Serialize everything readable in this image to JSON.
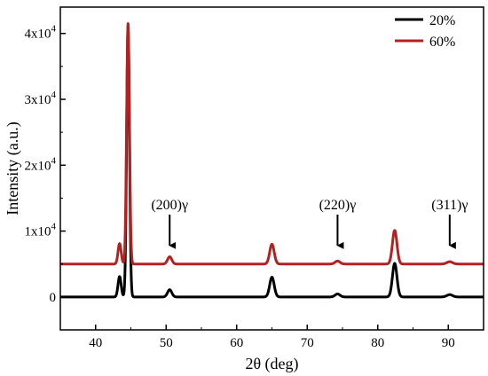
{
  "chart_data": {
    "type": "line",
    "xlabel": "2θ (deg)",
    "ylabel": "Intensity (a.u.)",
    "xlim": [
      35,
      95
    ],
    "ylim": [
      -5000,
      44000
    ],
    "x_ticks": [
      40,
      50,
      60,
      70,
      80,
      90
    ],
    "x_tick_labels": [
      "40",
      "50",
      "60",
      "70",
      "80",
      "90"
    ],
    "y_ticks": [
      0,
      10000,
      20000,
      30000,
      40000
    ],
    "y_tick_labels": [
      {
        "base": "0",
        "exp": ""
      },
      {
        "base": "1x10",
        "exp": "4"
      },
      {
        "base": "2x10",
        "exp": "4"
      },
      {
        "base": "3x10",
        "exp": "4"
      },
      {
        "base": "4x10",
        "exp": "4"
      }
    ],
    "grid": false,
    "legend_position": "top-right",
    "series": [
      {
        "name": "20%",
        "color": "#000000",
        "baseline": 0,
        "peaks": [
          {
            "x": 43.4,
            "height": 3100,
            "width": 0.22
          },
          {
            "x": 44.6,
            "height": 41000,
            "width": 0.2
          },
          {
            "x": 50.5,
            "height": 1100,
            "width": 0.3
          },
          {
            "x": 65.0,
            "height": 3000,
            "width": 0.32
          },
          {
            "x": 74.3,
            "height": 450,
            "width": 0.35
          },
          {
            "x": 82.4,
            "height": 5100,
            "width": 0.32
          },
          {
            "x": 90.2,
            "height": 350,
            "width": 0.4
          }
        ]
      },
      {
        "name": "60%",
        "color": "#b22222",
        "baseline": 5000,
        "peaks": [
          {
            "x": 43.4,
            "height": 3100,
            "width": 0.22
          },
          {
            "x": 44.6,
            "height": 36500,
            "width": 0.2
          },
          {
            "x": 50.5,
            "height": 1100,
            "width": 0.3
          },
          {
            "x": 65.0,
            "height": 3000,
            "width": 0.32
          },
          {
            "x": 74.3,
            "height": 450,
            "width": 0.35
          },
          {
            "x": 82.4,
            "height": 5100,
            "width": 0.32
          },
          {
            "x": 90.2,
            "height": 350,
            "width": 0.4
          }
        ]
      }
    ],
    "annotations": [
      {
        "text": "(200)γ",
        "x": 50.5,
        "arrow_top": 12500,
        "arrow_tip": 7000
      },
      {
        "text": "(220)γ",
        "x": 74.3,
        "arrow_top": 12500,
        "arrow_tip": 7000
      },
      {
        "text": "(311)γ",
        "x": 90.2,
        "arrow_top": 12500,
        "arrow_tip": 7000
      }
    ]
  }
}
